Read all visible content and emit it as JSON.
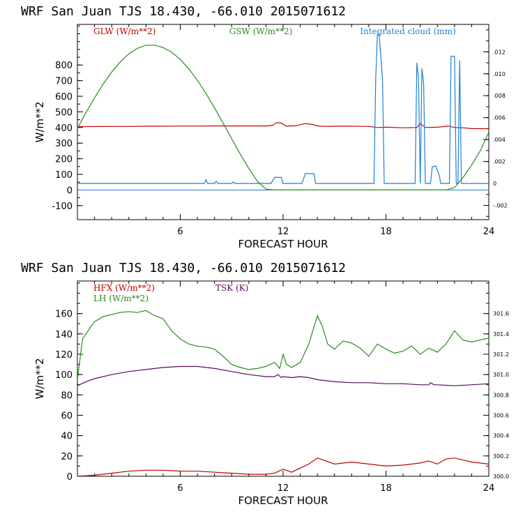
{
  "chart_data": [
    {
      "type": "line",
      "title": "WRF  San Juan TJS  18.430, -66.010  2015071612",
      "xlabel": "FORECAST HOUR",
      "ylabel": "W/m**2",
      "xlim": [
        0,
        24
      ],
      "ylim": [
        -190,
        1060
      ],
      "x_ticks": [
        6,
        12,
        18,
        24
      ],
      "y_ticks": [
        -100,
        0,
        100,
        200,
        300,
        400,
        500,
        600,
        700,
        800
      ],
      "y2_label": "",
      "y2lim": [
        -0.0033,
        0.0145
      ],
      "y2_ticks": [
        -0.002,
        0,
        0.002,
        0.004,
        0.006,
        0.008,
        0.01,
        0.012
      ],
      "y2_tick_labels": [
        "-.002",
        "0",
        ".002",
        ".004",
        ".006",
        ".008",
        ".010",
        ".012"
      ],
      "grid": false,
      "series": [
        {
          "name": "GLW (W/m**2)",
          "color": "#c00000",
          "axis": "left",
          "x": [
            0,
            1,
            2,
            3,
            4,
            5,
            6,
            7,
            8,
            9,
            10,
            11,
            11.4,
            11.6,
            11.9,
            12.2,
            12.4,
            12.6,
            12.8,
            13.0,
            13.3,
            13.7,
            14.0,
            14.5,
            15,
            16,
            17,
            17.5,
            18,
            19,
            19.8,
            20.0,
            20.3,
            21,
            21.3,
            21.6,
            22,
            22.5,
            23,
            24
          ],
          "values": [
            405,
            406,
            407,
            407,
            408,
            408,
            409,
            409,
            410,
            410,
            410,
            410,
            413,
            432,
            428,
            408,
            410,
            410,
            412,
            418,
            425,
            420,
            410,
            407,
            408,
            408,
            407,
            400,
            402,
            398,
            400,
            425,
            400,
            402,
            405,
            410,
            400,
            398,
            393,
            392
          ]
        },
        {
          "name": "GSW (W/m**2)",
          "color": "#2a8a1e",
          "axis": "left",
          "x": [
            0,
            0.5,
            1,
            1.5,
            2,
            2.5,
            3,
            3.5,
            4,
            4.5,
            5,
            5.5,
            6,
            6.5,
            7,
            7.5,
            8,
            8.5,
            9,
            9.5,
            10,
            10.5,
            11,
            11.5,
            12,
            13,
            14,
            15,
            16,
            17,
            18,
            19,
            20,
            21,
            21.5,
            22,
            22.5,
            23,
            23.5,
            24
          ],
          "values": [
            395,
            495,
            590,
            678,
            755,
            820,
            872,
            907,
            927,
            927,
            912,
            882,
            836,
            775,
            702,
            618,
            525,
            427,
            328,
            230,
            138,
            55,
            5,
            0,
            0,
            0,
            0,
            0,
            0,
            0,
            0,
            0,
            0,
            0,
            0,
            15,
            80,
            160,
            250,
            370
          ]
        },
        {
          "name": "Integrated cloud (mm)",
          "color": "#1f7fd6",
          "axis": "right",
          "x": [
            0,
            7.4,
            7.5,
            7.6,
            8.0,
            8.1,
            8.2,
            9.0,
            9.1,
            9.2,
            11.3,
            11.5,
            11.9,
            12.0,
            13.1,
            13.3,
            13.8,
            13.9,
            17.3,
            17.4,
            17.5,
            17.6,
            17.8,
            17.9,
            19.7,
            19.8,
            19.9,
            20.0,
            20.1,
            20.2,
            20.3,
            20.4,
            20.6,
            20.7,
            20.9,
            21.1,
            21.2,
            21.7,
            21.8,
            22.0,
            22.1,
            22.2,
            22.3,
            22.4,
            24
          ],
          "values": [
            0,
            0,
            0.00035,
            0,
            0,
            0.0002,
            0,
            0,
            0.00015,
            0,
            0,
            0.00055,
            0.00055,
            0,
            0,
            0.0009,
            0.0009,
            0,
            0,
            0.0095,
            0.0136,
            0.0136,
            0.0095,
            0,
            0,
            0.011,
            0.0095,
            0,
            0.0105,
            0.009,
            0,
            0,
            0,
            0.0015,
            0.0016,
            0.0008,
            0,
            0,
            0.0116,
            0.0116,
            0,
            0,
            0.0112,
            0,
            0
          ]
        }
      ],
      "zero_line_color": "#1f7fd6"
    },
    {
      "type": "line",
      "title": "WRF  San Juan TJS  18.430, -66.010  2015071612",
      "xlabel": "FORECAST HOUR",
      "ylabel": "W/m**2",
      "xlim": [
        0,
        24
      ],
      "ylim": [
        0,
        192
      ],
      "x_ticks": [
        6,
        12,
        18,
        24
      ],
      "y_ticks": [
        0,
        20,
        40,
        60,
        80,
        100,
        120,
        140,
        160
      ],
      "y2_label": "",
      "y2lim": [
        300.0,
        301.92
      ],
      "y2_ticks": [
        300.0,
        300.2,
        300.4,
        300.6,
        300.8,
        301.0,
        301.2,
        301.4,
        301.6
      ],
      "y2_tick_labels": [
        "300.0",
        "300.2",
        "300.4",
        "300.6",
        "300.8",
        "301.0",
        "301.2",
        "301.4",
        "301.6"
      ],
      "grid": false,
      "series": [
        {
          "name": "HFX (W/m**2)",
          "color": "#c00000",
          "axis": "left",
          "x": [
            0,
            1,
            2,
            3,
            4,
            5,
            6,
            7,
            8,
            9,
            10,
            11,
            11.5,
            12,
            12.5,
            13,
            13.5,
            14,
            14.5,
            15,
            16,
            17,
            18,
            19,
            20,
            20.5,
            21,
            21.5,
            22,
            22.5,
            23,
            24
          ],
          "values": [
            0,
            1,
            3,
            5,
            6,
            6,
            5,
            5,
            4,
            3,
            2,
            2,
            3,
            7,
            4,
            8,
            12,
            18,
            15,
            12,
            14,
            12,
            10,
            11,
            13,
            15,
            12,
            17,
            18,
            16,
            14,
            12
          ]
        },
        {
          "name": "LH  (W/m**2)",
          "color": "#2a8a1e",
          "axis": "left",
          "x": [
            0,
            0.3,
            0.7,
            1,
            1.5,
            2,
            2.5,
            3,
            3.5,
            4,
            4.5,
            5,
            5.5,
            6,
            6.5,
            7,
            7.5,
            8,
            8.5,
            9,
            9.5,
            10,
            10.5,
            11,
            11.5,
            11.8,
            12,
            12.2,
            12.5,
            13,
            13.5,
            14,
            14.3,
            14.6,
            15,
            15.5,
            16,
            16.5,
            17,
            17.5,
            18,
            18.5,
            19,
            19.5,
            20,
            20.5,
            21,
            21.5,
            22,
            22.5,
            23,
            23.5,
            24
          ],
          "values": [
            95,
            135,
            145,
            152,
            157,
            159,
            161,
            162,
            161,
            163,
            158,
            155,
            143,
            135,
            130,
            128,
            127,
            125,
            118,
            110,
            107,
            105,
            106,
            108,
            112,
            106,
            120,
            110,
            107,
            112,
            130,
            158,
            147,
            130,
            125,
            133,
            131,
            126,
            118,
            130,
            125,
            121,
            123,
            128,
            120,
            126,
            122,
            130,
            143,
            134,
            132,
            134,
            136
          ]
        },
        {
          "name": "TSK (K)",
          "color": "#5a0a5a",
          "axis": "right",
          "x": [
            0,
            0.5,
            1,
            2,
            3,
            4,
            5,
            6,
            7,
            8,
            9,
            10,
            11,
            11.5,
            11.7,
            11.9,
            12,
            12.5,
            13,
            13.5,
            14,
            15,
            16,
            17,
            18,
            19,
            20,
            20.5,
            20.6,
            20.8,
            21,
            22,
            23,
            24
          ],
          "values": [
            300.89,
            300.93,
            300.96,
            301.0,
            301.03,
            301.05,
            301.07,
            301.08,
            301.08,
            301.06,
            301.03,
            301.0,
            300.98,
            300.98,
            301.0,
            300.97,
            300.98,
            300.97,
            300.98,
            300.97,
            300.95,
            300.93,
            300.92,
            300.92,
            300.91,
            300.91,
            300.9,
            300.9,
            300.92,
            300.9,
            300.9,
            300.89,
            300.9,
            300.91
          ]
        }
      ]
    }
  ]
}
